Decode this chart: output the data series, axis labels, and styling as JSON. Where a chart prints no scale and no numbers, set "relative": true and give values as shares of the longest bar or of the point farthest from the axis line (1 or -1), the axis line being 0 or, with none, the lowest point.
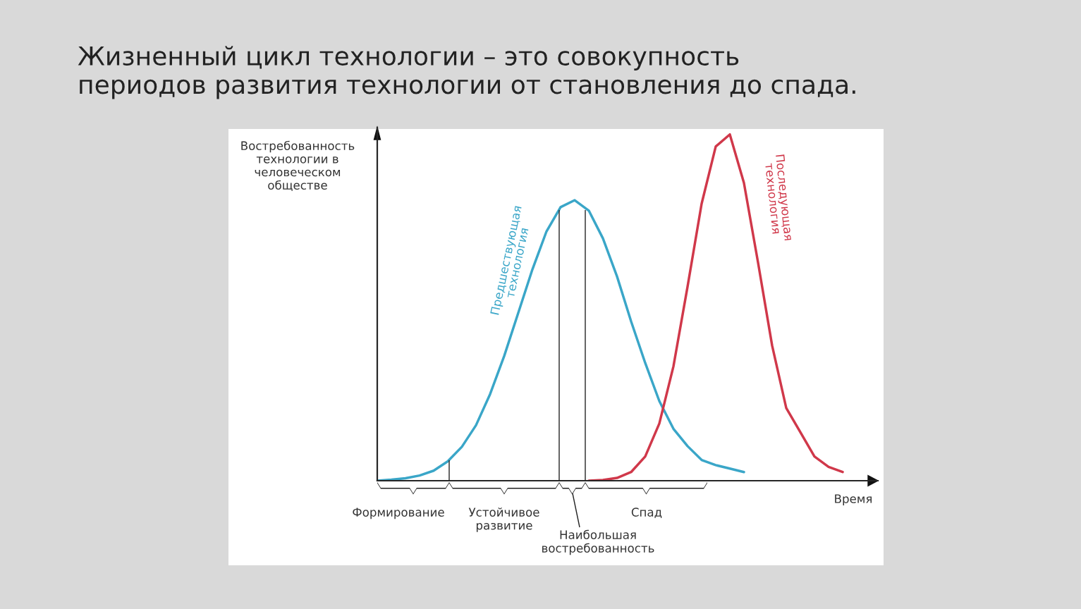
{
  "chart_data": {
    "type": "line",
    "relative": true,
    "title": "Жизненный цикл технологии – это совокупность периодов развития технологии от становления до спада.",
    "xlabel": "Время",
    "ylabel": "Востребованность технологии в человеческом обществе",
    "categories": [
      null,
      null,
      null,
      null,
      null,
      null,
      null,
      null,
      null,
      null,
      null,
      null,
      null,
      null,
      null,
      null,
      null,
      null,
      null,
      null,
      null,
      null,
      null,
      null,
      null,
      null,
      null,
      null,
      null,
      null,
      null,
      null,
      null,
      null
    ],
    "series": [
      {
        "name": "Предшествующая технология",
        "color": "#3aa6c8",
        "values": [
          0.0,
          0.003,
          0.007,
          0.015,
          0.029,
          0.056,
          0.098,
          0.16,
          0.25,
          0.36,
          0.485,
          0.61,
          0.72,
          0.79,
          0.81,
          0.78,
          0.7,
          0.59,
          0.46,
          0.34,
          0.23,
          0.15,
          0.1,
          0.06,
          0.045,
          0.035,
          0.025,
          null,
          null,
          null,
          null,
          null,
          null,
          null
        ]
      },
      {
        "name": "Последующая технология",
        "color": "#d0384a",
        "values": [
          null,
          null,
          null,
          null,
          null,
          null,
          null,
          null,
          null,
          null,
          null,
          null,
          null,
          null,
          null,
          0.0,
          0.002,
          0.008,
          0.025,
          0.07,
          0.165,
          0.33,
          0.56,
          0.8,
          0.965,
          1.0,
          0.86,
          0.63,
          0.39,
          0.21,
          0.14,
          0.07,
          0.04,
          0.025
        ]
      }
    ],
    "annotations": [
      "Формирование",
      "Устойчивое развитие",
      "Наибольшая востребованность",
      "Спад"
    ],
    "grid": false,
    "legend": false,
    "marker": "none",
    "line_style": "solid"
  }
}
